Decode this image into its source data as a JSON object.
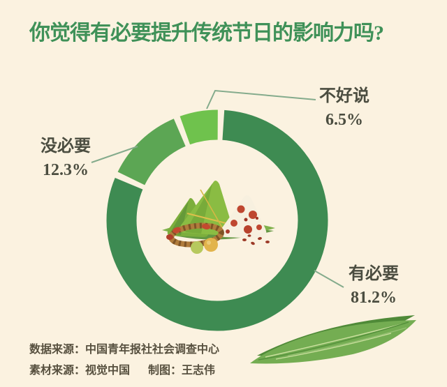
{
  "title": "你觉得有必要提升传统节日的影响力吗?",
  "chart_data": {
    "type": "pie",
    "subtype": "donut",
    "title": "你觉得有必要提升传统节日的影响力吗?",
    "categories": [
      "有必要",
      "没必要",
      "不好说"
    ],
    "values": [
      81.2,
      12.3,
      6.5
    ],
    "unit": "%",
    "legend_position": "callout-labels-with-leader-lines",
    "center_illustration": "zongzi-rice-dumplings",
    "slices": [
      {
        "key": "youbiyao",
        "label": "有必要",
        "value": 81.2,
        "value_text": "81.2%",
        "color": "#3e8b52"
      },
      {
        "key": "meibiyao",
        "label": "没必要",
        "value": 12.3,
        "value_text": "12.3%",
        "color": "#5ca654"
      },
      {
        "key": "buhaoshuo",
        "label": "不好说",
        "value": 6.5,
        "value_text": "6.5%",
        "color": "#6fc24d"
      }
    ],
    "start_angle_deg": 2,
    "gap_deg": 3.4
  },
  "footer": {
    "line1": "数据来源：中国青年报社社会调查中心",
    "line2a": "素材来源：视觉中国",
    "line2b": "制图：王志伟"
  },
  "colors": {
    "background": "#fbf2e0",
    "title": "#3f9158",
    "label_text": "#4b4d40",
    "footer_text": "#57503f",
    "leader_line": "#84ab8c",
    "slice_youbiyao": "#3e8b52",
    "slice_meibiyao": "#5ca654",
    "slice_buhaoshuo": "#6fc24d"
  }
}
